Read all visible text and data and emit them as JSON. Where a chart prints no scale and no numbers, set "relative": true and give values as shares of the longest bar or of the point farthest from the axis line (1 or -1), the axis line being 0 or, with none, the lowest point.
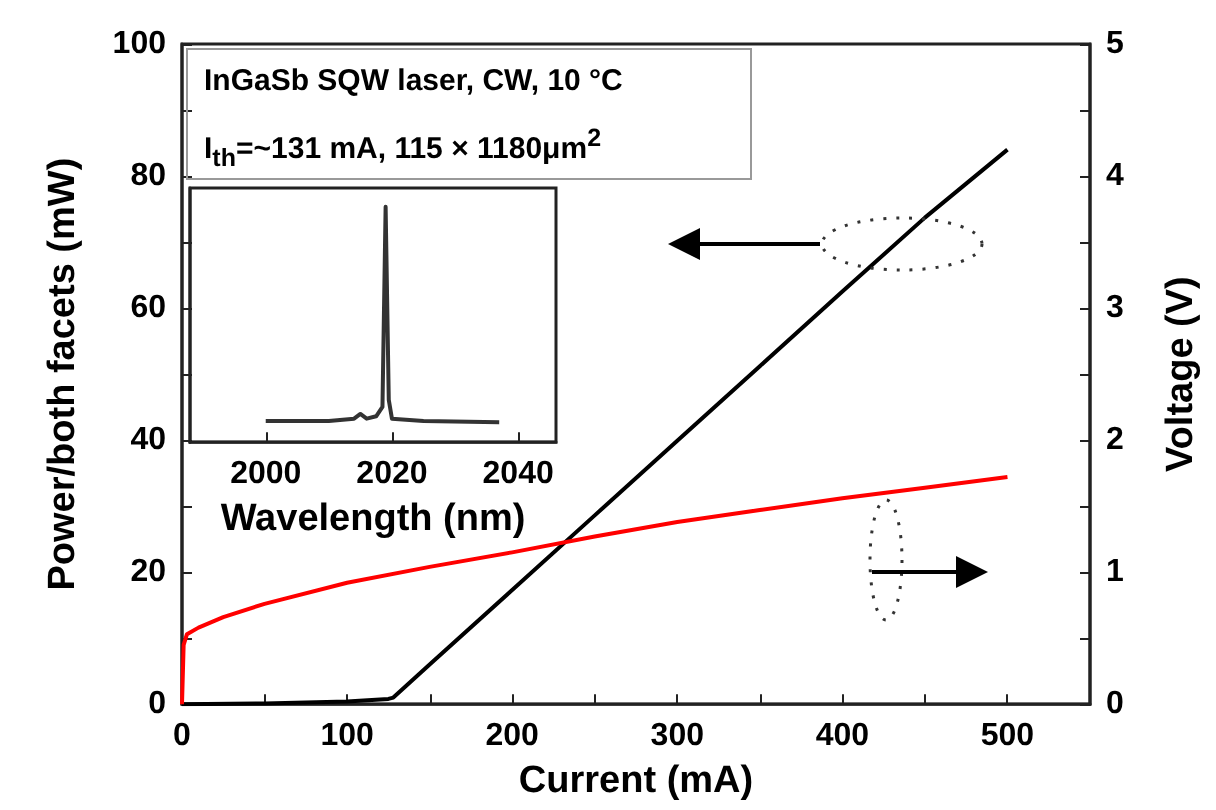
{
  "chart_data": [
    {
      "type": "line",
      "xlabel": "Current (mA)",
      "ylabel": "Power/both facets (mW)",
      "y2label": "Voltage (V)",
      "annotations": [
        "InGaSb SQW laser, CW, 10 °C",
        "I$_{th}$=~131 mA, 115 × 1180μm$^{2}$"
      ],
      "xlim": [
        0,
        550
      ],
      "xticks": [
        0,
        {
          "value": 50,
          "label": null
        },
        100,
        {
          "value": 150,
          "label": null
        },
        200,
        {
          "value": 250,
          "label": null
        },
        300,
        {
          "value": 350,
          "label": null
        },
        400,
        {
          "value": 450,
          "label": null
        },
        500
      ],
      "ylim": [
        0,
        100
      ],
      "yticks": [
        0,
        {
          "value": 10,
          "label": null
        },
        20,
        {
          "value": 30,
          "label": null
        },
        40,
        {
          "value": 50,
          "label": null
        },
        60,
        {
          "value": 70,
          "label": null
        },
        80,
        {
          "value": 90,
          "label": null
        },
        100
      ],
      "y2lim": [
        0,
        5
      ],
      "y2ticks": [
        0,
        {
          "value": 0.5,
          "label": null
        },
        1,
        {
          "value": 1.5,
          "label": null
        },
        2,
        {
          "value": 2.5,
          "label": null
        },
        3,
        {
          "value": 3.5,
          "label": null
        },
        4,
        {
          "value": 4.5,
          "label": null
        },
        5
      ],
      "grid": false,
      "marker": "none",
      "line_style": "solid",
      "series": [
        {
          "color": "#000000",
          "x": [
            0,
            50,
            100,
            125,
            128,
            150,
            200,
            250,
            300,
            350,
            400,
            450,
            500
          ],
          "values": [
            0,
            0.1,
            0.4,
            0.8,
            1,
            6,
            17.3,
            28.6,
            39.9,
            51.2,
            62.5,
            73.7,
            84
          ]
        },
        {
          "color": "#ff0000",
          "axis": "y2",
          "x": [
            0,
            1,
            3,
            10,
            25,
            50,
            100,
            150,
            200,
            250,
            300,
            350,
            400,
            450,
            500
          ],
          "values": [
            0,
            0.45,
            0.53,
            0.58,
            0.66,
            0.76,
            0.92,
            1.04,
            1.15,
            1.27,
            1.38,
            1.47,
            1.56,
            1.64,
            1.72
          ]
        }
      ]
    },
    {
      "type": "line",
      "relative": true,
      "xlabel": "Wavelength (nm)",
      "xlim": [
        1988,
        2046
      ],
      "xticks": [
        2000,
        2020,
        2040
      ],
      "tick_labels": "x",
      "grid": false,
      "marker": "none",
      "line_style": "solid",
      "series": [
        {
          "color": "#333333",
          "x": [
            2000,
            2010,
            2014,
            2015,
            2016,
            2017.5,
            2018.5,
            2019,
            2019.5,
            2020,
            2025,
            2037
          ],
          "values": [
            0.09,
            0.09,
            0.1,
            0.12,
            0.1,
            0.11,
            0.15,
            1,
            0.18,
            0.1,
            0.09,
            0.085
          ]
        }
      ]
    }
  ]
}
